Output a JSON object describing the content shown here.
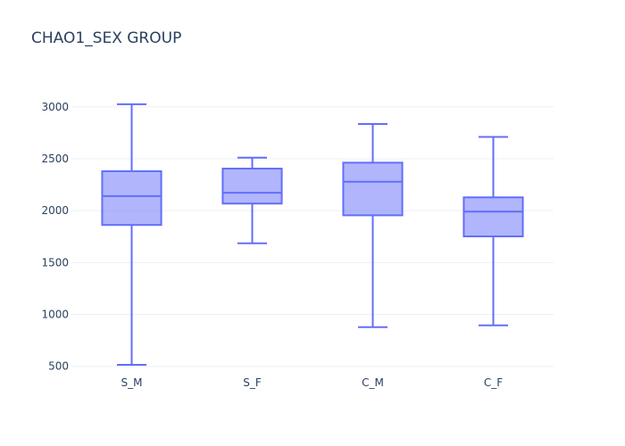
{
  "chart_data": {
    "type": "box",
    "title": "CHAO1_SEX GROUP",
    "xlabel": "",
    "ylabel": "",
    "categories": [
      "S_M",
      "S_F",
      "C_M",
      "C_F"
    ],
    "boxes": [
      {
        "category": "S_M",
        "min": 515,
        "q1": 1862,
        "median": 2140,
        "q3": 2380,
        "max": 3025
      },
      {
        "category": "S_F",
        "min": 1685,
        "q1": 2068,
        "median": 2172,
        "q3": 2405,
        "max": 2510
      },
      {
        "category": "C_M",
        "min": 878,
        "q1": 1955,
        "median": 2278,
        "q3": 2462,
        "max": 2835
      },
      {
        "category": "C_F",
        "min": 895,
        "q1": 1752,
        "median": 1990,
        "q3": 2128,
        "max": 2710
      }
    ],
    "yticks": [
      500,
      1000,
      1500,
      2000,
      2500,
      3000
    ],
    "ylim": [
      420,
      3170
    ],
    "grid": true,
    "legend": "none",
    "colors": {
      "line": "#636efa",
      "fill": "rgba(99,110,250,0.5)",
      "grid": "#ebf0f8",
      "text": "#2a3f5f"
    }
  }
}
